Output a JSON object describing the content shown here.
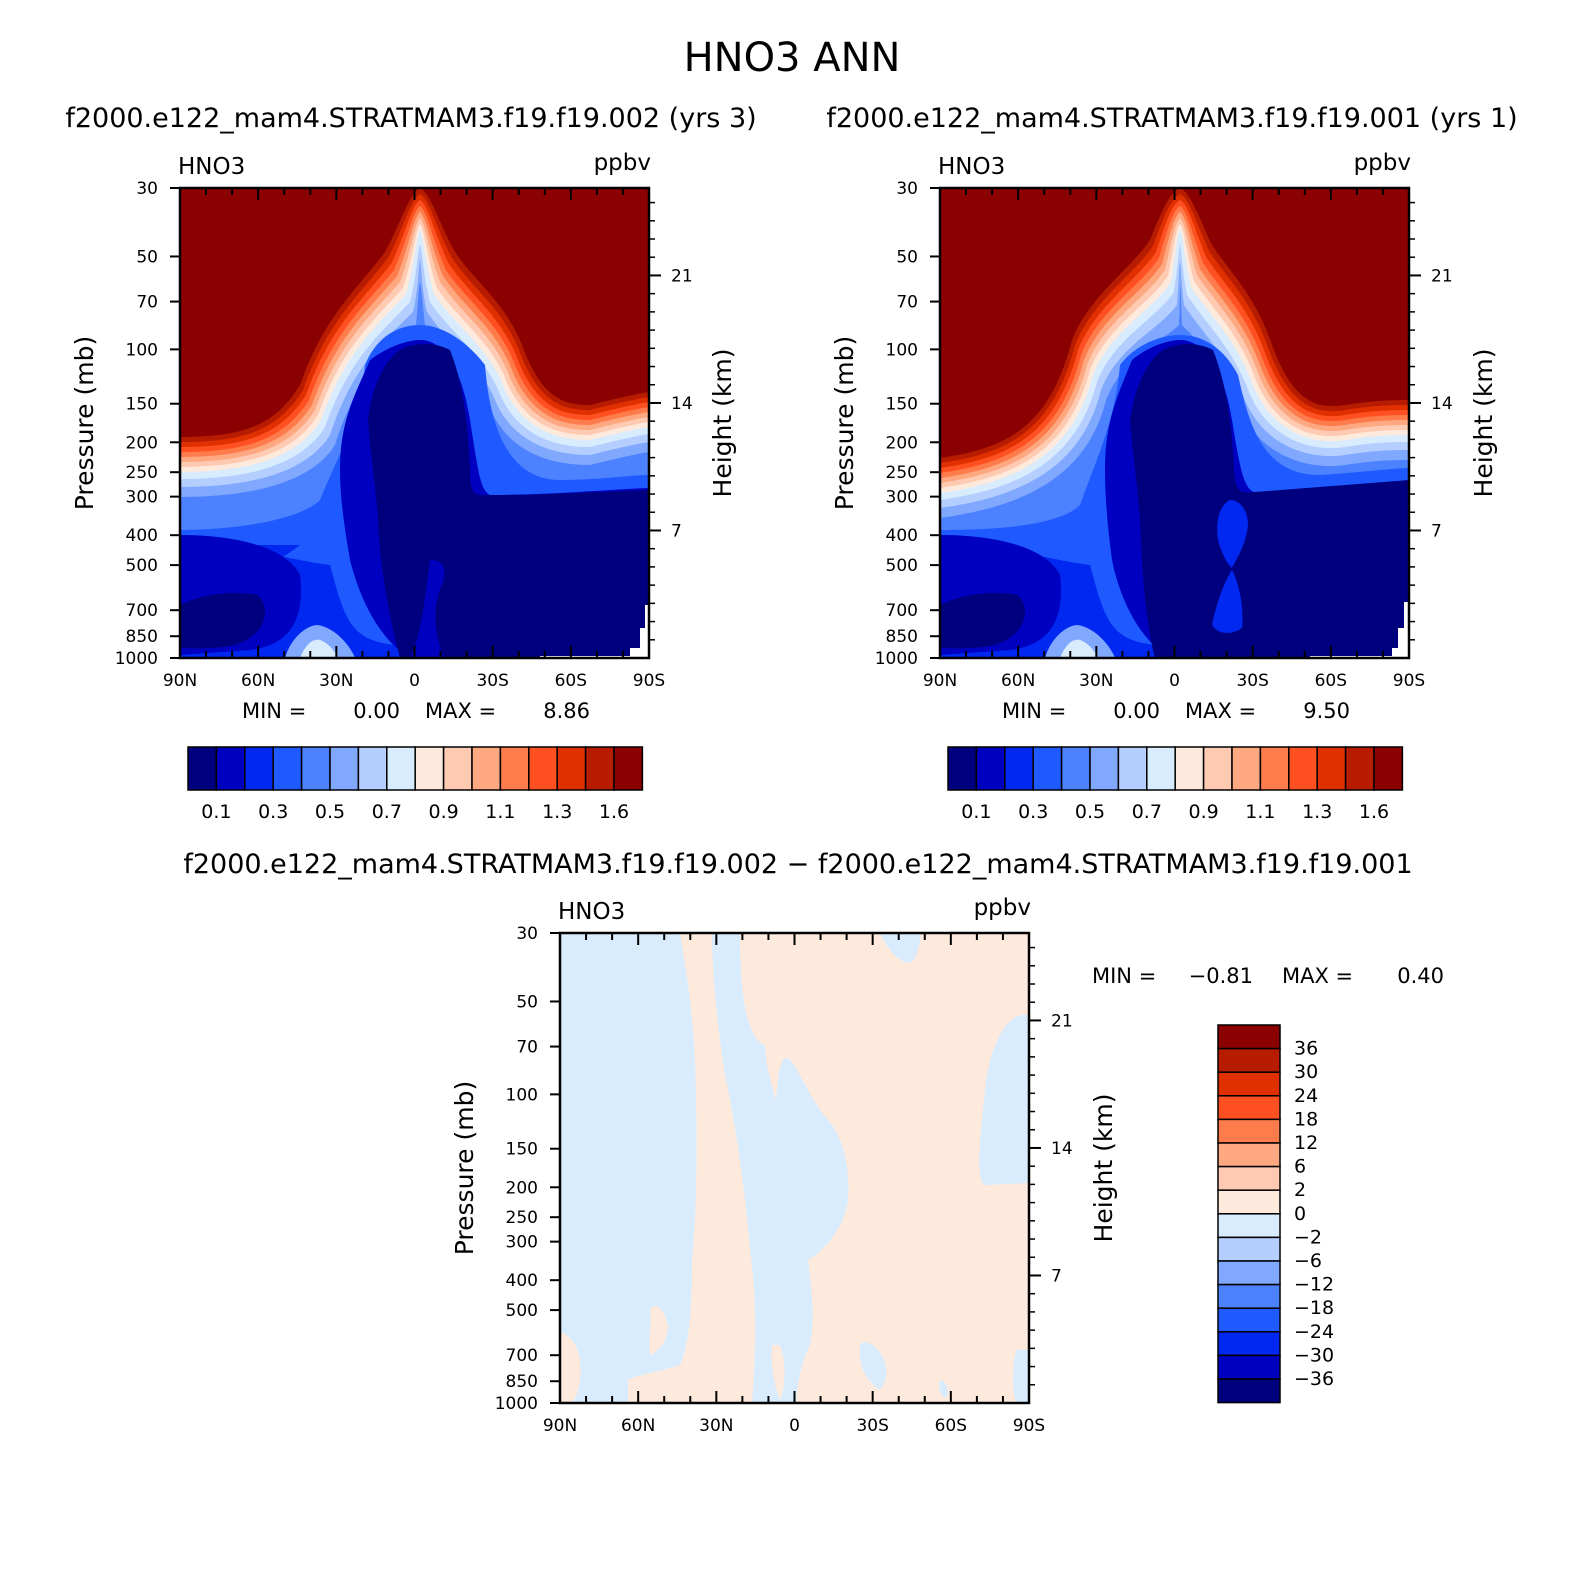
{
  "title": "HNO3 ANN",
  "colors": {
    "seq": [
      "#00007f",
      "#0000c0",
      "#0028f0",
      "#1e5aff",
      "#4c82ff",
      "#80a8ff",
      "#b4ceff",
      "#d8ecfd",
      "#feeadd",
      "#fecab2",
      "#fea882",
      "#fe7c4c",
      "#fe5020",
      "#e03000",
      "#b81c00",
      "#8b0000"
    ],
    "diff": [
      "#00007f",
      "#0000c0",
      "#0028f0",
      "#1e5aff",
      "#4c82ff",
      "#80a8ff",
      "#b4ceff",
      "#d8ecfd",
      "#feeadd",
      "#fecab2",
      "#fea882",
      "#fe7c4c",
      "#fe5020",
      "#e03000",
      "#b81c00",
      "#8b0000"
    ]
  },
  "chart_data": [
    {
      "type": "heatmap",
      "id": "case1",
      "subtitle": "f2000.e122_mam4.STRATMAM3.f19.f19.002 (yrs 3)",
      "variable_label": "HNO3",
      "units_label": "ppbv",
      "xlabel": "",
      "ylabel": "Pressure (mb)",
      "ylabel_right": "Height (km)",
      "x_ticks": [
        "90N",
        "60N",
        "30N",
        "0",
        "30S",
        "60S",
        "90S"
      ],
      "y_ticks": [
        "30",
        "50",
        "70",
        "100",
        "150",
        "200",
        "250",
        "300",
        "400",
        "500",
        "700",
        "850",
        "1000"
      ],
      "y_right_ticks": [
        "21",
        "14",
        "7"
      ],
      "min_label": "MIN =",
      "min_value": "0.00",
      "max_label": "MAX =",
      "max_value": "8.86",
      "y_scale": "log-pressure",
      "levels": [
        "0.1",
        "0.3",
        "0.5",
        "0.7",
        "0.9",
        "1.1",
        "1.3",
        "1.6"
      ],
      "colorbar_orientation": "horizontal"
    },
    {
      "type": "heatmap",
      "id": "case2",
      "subtitle": "f2000.e122_mam4.STRATMAM3.f19.f19.001 (yrs 1)",
      "variable_label": "HNO3",
      "units_label": "ppbv",
      "xlabel": "",
      "ylabel": "Pressure (mb)",
      "ylabel_right": "Height (km)",
      "x_ticks": [
        "90N",
        "60N",
        "30N",
        "0",
        "30S",
        "60S",
        "90S"
      ],
      "y_ticks": [
        "30",
        "50",
        "70",
        "100",
        "150",
        "200",
        "250",
        "300",
        "400",
        "500",
        "700",
        "850",
        "1000"
      ],
      "y_right_ticks": [
        "21",
        "14",
        "7"
      ],
      "min_label": "MIN =",
      "min_value": "0.00",
      "max_label": "MAX =",
      "max_value": "9.50",
      "y_scale": "log-pressure",
      "levels": [
        "0.1",
        "0.3",
        "0.5",
        "0.7",
        "0.9",
        "1.1",
        "1.3",
        "1.6"
      ],
      "colorbar_orientation": "horizontal"
    },
    {
      "type": "heatmap",
      "id": "diff",
      "subtitle": "f2000.e122_mam4.STRATMAM3.f19.f19.002 − f2000.e122_mam4.STRATMAM3.f19.f19.001",
      "variable_label": "HNO3",
      "units_label": "ppbv",
      "xlabel": "",
      "ylabel": "Pressure (mb)",
      "ylabel_right": "Height (km)",
      "x_ticks": [
        "90N",
        "60N",
        "30N",
        "0",
        "30S",
        "60S",
        "90S"
      ],
      "y_ticks": [
        "30",
        "50",
        "70",
        "100",
        "150",
        "200",
        "250",
        "300",
        "400",
        "500",
        "700",
        "850",
        "1000"
      ],
      "y_right_ticks": [
        "21",
        "14",
        "7"
      ],
      "min_label": "MIN =",
      "min_value": "−0.81",
      "max_label": "MAX =",
      "max_value": "0.40",
      "y_scale": "log-pressure",
      "levels": [
        "36",
        "30",
        "24",
        "18",
        "12",
        "6",
        "2",
        "0",
        "−2",
        "−6",
        "−12",
        "−18",
        "−24",
        "−30",
        "−36"
      ],
      "colorbar_orientation": "vertical"
    }
  ]
}
